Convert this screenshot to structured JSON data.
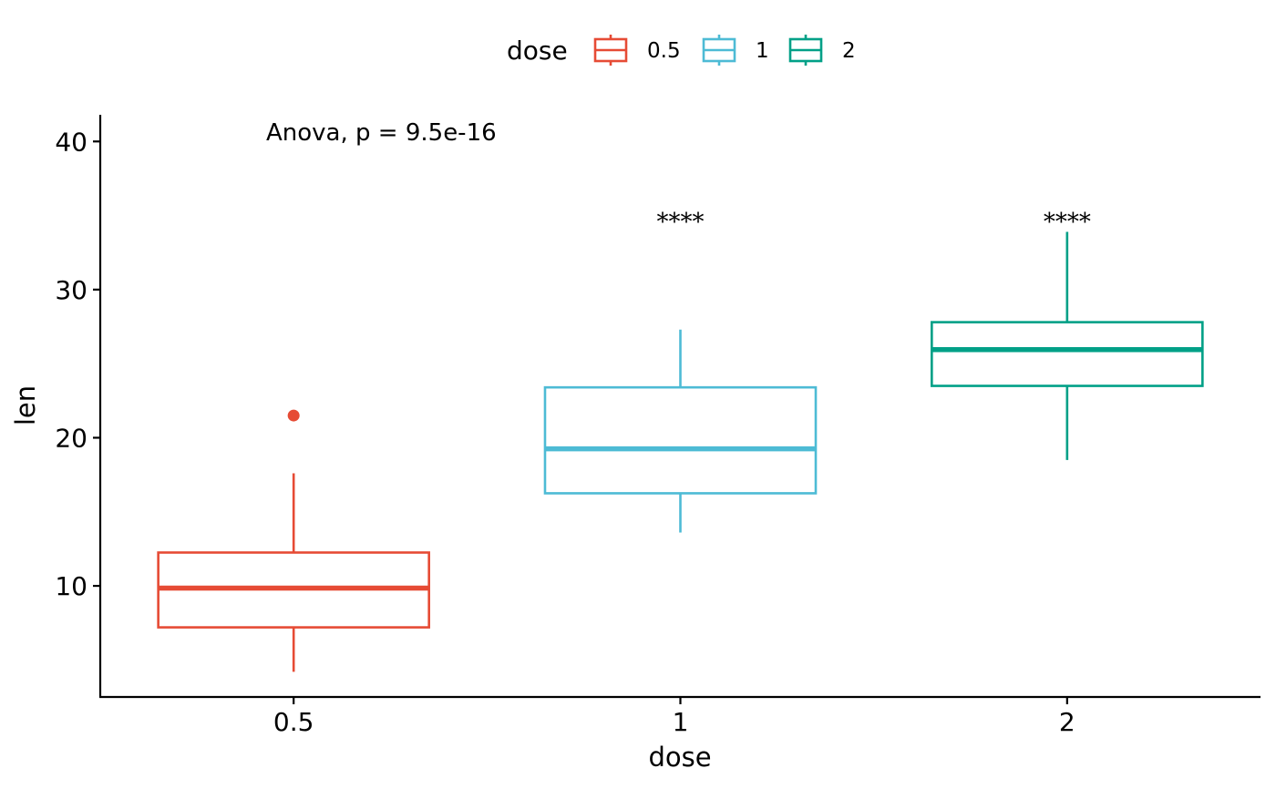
{
  "chart_data": {
    "type": "box",
    "xlabel": "dose",
    "ylabel": "len",
    "categories": [
      "0.5",
      "1",
      "2"
    ],
    "ylim": [
      2.5,
      41.8
    ],
    "yticks": [
      10,
      20,
      30,
      40
    ],
    "ytick_labels": [
      "10",
      "20",
      "30",
      "40"
    ],
    "legend": {
      "title": "dose",
      "position": "top",
      "entries": [
        "0.5",
        "1",
        "2"
      ]
    },
    "annotation": "Anova, p = 9.5e-16",
    "grid": false,
    "series": [
      {
        "name": "0.5",
        "color": "#E64B35",
        "whisker_low": 4.2,
        "q1": 7.2,
        "median": 9.85,
        "q3": 12.25,
        "whisker_high": 17.6,
        "outliers": [
          21.5
        ],
        "significance": ""
      },
      {
        "name": "1",
        "color": "#4DBBD5",
        "whisker_low": 13.6,
        "q1": 16.25,
        "median": 19.25,
        "q3": 23.4,
        "whisker_high": 27.3,
        "outliers": [],
        "significance": "****"
      },
      {
        "name": "2",
        "color": "#00A087",
        "whisker_low": 18.5,
        "q1": 23.5,
        "median": 25.95,
        "q3": 27.8,
        "whisker_high": 33.9,
        "outliers": [],
        "significance": "****"
      }
    ]
  }
}
